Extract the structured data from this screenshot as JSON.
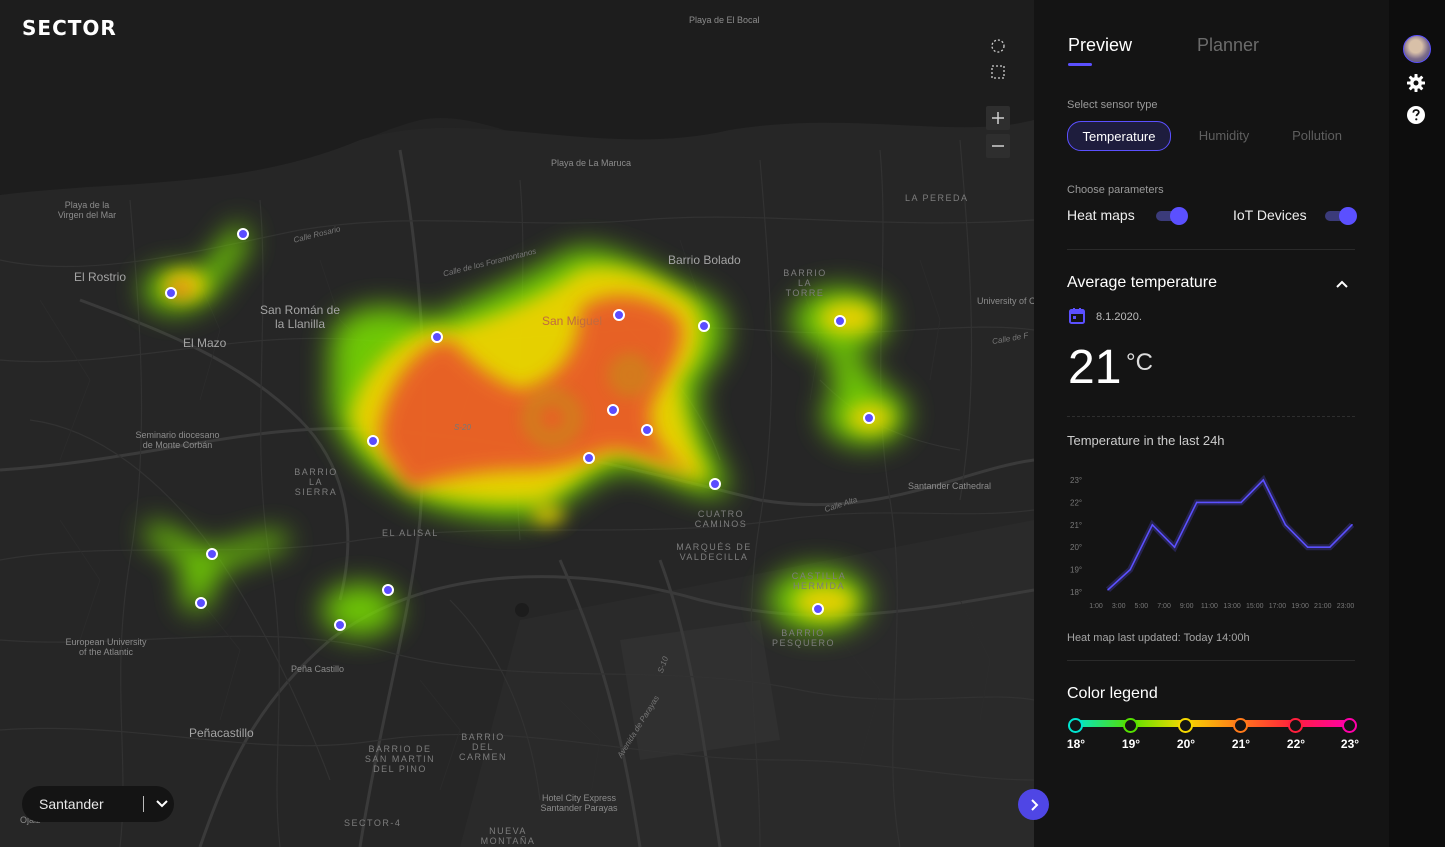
{
  "brand": "SECTOR",
  "map": {
    "city_select": {
      "value": "Santander"
    },
    "labels": {
      "playa_bocal": "Playa de El Bocal",
      "playa_maruca": "Playa de La Maruca",
      "playa_virgen": "Playa de la Virgen del Mar",
      "el_rostrio": "El Rostrio",
      "san_roman": "San Román de la Llanilla",
      "el_mazo": "El Mazo",
      "barrio_bolado": "Barrio Bolado",
      "barrio_la_torre": "BARRIO LA TORRE",
      "la_pereda": "LA PEREDA",
      "university": "University of C",
      "san_miguel": "San Miguel",
      "seminario": "Seminario diocesano de Monte Corbán",
      "barrio_la_sierra": "BARRIO LA SIERRA",
      "el_alisal": "EL ALISAL",
      "santander_cathedral": "Santander Cathedral",
      "cuatro_caminos": "CUATRO CAMINOS",
      "marques_valdecilla": "MARQUÉS DE VALDECILLA",
      "castilla_hermida": "CASTILLA HERMIDA",
      "barrio_pesquero": "BARRIO PESQUERO",
      "european_university": "European University of the Atlantic",
      "pena_castillo": "Peña Castillo",
      "penacastillo": "Peñacastillo",
      "barrio_san_martin": "BARRIO DE SAN MARTIN DEL PINO",
      "barrio_carmen": "BARRIO DEL CARMEN",
      "hotel": "Hotel City Express Santander Parayas",
      "sector_4": "SECTOR-4",
      "nueva_montana": "NUEVA MONTAÑA",
      "ojaiz": "Ojaiz",
      "calle_rosario": "Calle Rosario",
      "calle_foramontanos": "Calle de los Foramontanos",
      "calle_alta": "Calle Alta",
      "calle_de": "Calle de F",
      "s20": "S-20",
      "s10": "S-10",
      "avenida_parayas": "Avenida de Parayas"
    }
  },
  "panel": {
    "tabs": [
      "Preview",
      "Planner"
    ],
    "sensor_type_label": "Select sensor type",
    "sensor_types": [
      "Temperature",
      "Humidity",
      "Pollution"
    ],
    "parameters_label": "Choose parameters",
    "parameters": [
      {
        "label": "Heat maps",
        "on": true
      },
      {
        "label": "IoT Devices",
        "on": true
      }
    ],
    "avg_title": "Average temperature",
    "date": "8.1.2020.",
    "current_temp": "21",
    "unit": "°C",
    "chart_title": "Temperature in the last 24h",
    "updated": "Heat map last updated: Today 14:00h",
    "legend_title": "Color legend",
    "legend": [
      {
        "label": "18°",
        "color": "#00e5d0"
      },
      {
        "label": "19°",
        "color": "#55e000"
      },
      {
        "label": "20°",
        "color": "#f5d800"
      },
      {
        "label": "21°",
        "color": "#ff7a1a"
      },
      {
        "label": "22°",
        "color": "#ff1f3d"
      },
      {
        "label": "23°",
        "color": "#ff00a8"
      }
    ]
  },
  "chart_data": {
    "type": "line",
    "x": [
      "1:00",
      "3:00",
      "5:00",
      "7:00",
      "9:00",
      "11:00",
      "13:00",
      "15:00",
      "17:00",
      "19:00",
      "21:00",
      "23:00"
    ],
    "y_ticks": [
      "18°",
      "19°",
      "20°",
      "21°",
      "22°",
      "23°"
    ],
    "ylim": [
      18,
      23
    ],
    "series": [
      {
        "values": [
          18.1,
          19.0,
          21.0,
          20.0,
          22.0,
          22.0,
          22.0,
          23.0,
          21.0,
          20.0,
          20.0,
          21.0
        ]
      }
    ],
    "color": "#5b50ff"
  },
  "colors": {
    "accent": "#5b50ff"
  },
  "icons": [
    "lasso-select-icon",
    "rect-select-icon",
    "zoom-in-icon",
    "zoom-out-icon",
    "chevron-down-icon",
    "chevron-right-icon",
    "calendar-icon",
    "chevron-up-icon",
    "avatar",
    "gear-icon",
    "help-icon"
  ]
}
